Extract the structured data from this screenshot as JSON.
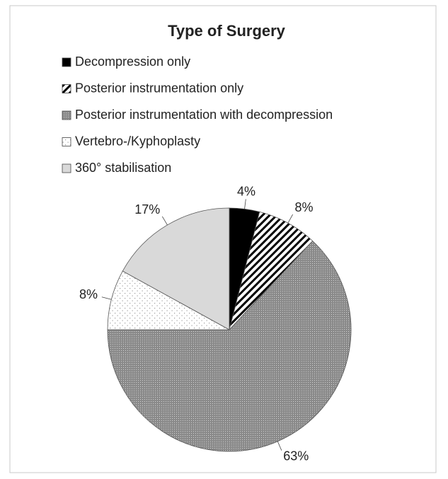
{
  "chart_data": {
    "type": "pie",
    "title": "Type of Surgery",
    "categories": [
      "Decompression only",
      "Posterior instrumentation only",
      "Posterior instrumentation with decompression",
      "Vertebro-/Kyphoplasty",
      "360° stabilisation"
    ],
    "values": [
      4,
      8,
      63,
      8,
      17
    ],
    "value_labels": [
      "4%",
      "8%",
      "63%",
      "8%",
      "17%"
    ],
    "colors": [
      "#000000",
      "#000000",
      "#8a8a8a",
      "#9a9a9a",
      "#d9d9d9"
    ],
    "patterns": [
      "solid",
      "diagonal",
      "dense-dots",
      "sparse-dots",
      "solid"
    ],
    "legend": "top"
  }
}
